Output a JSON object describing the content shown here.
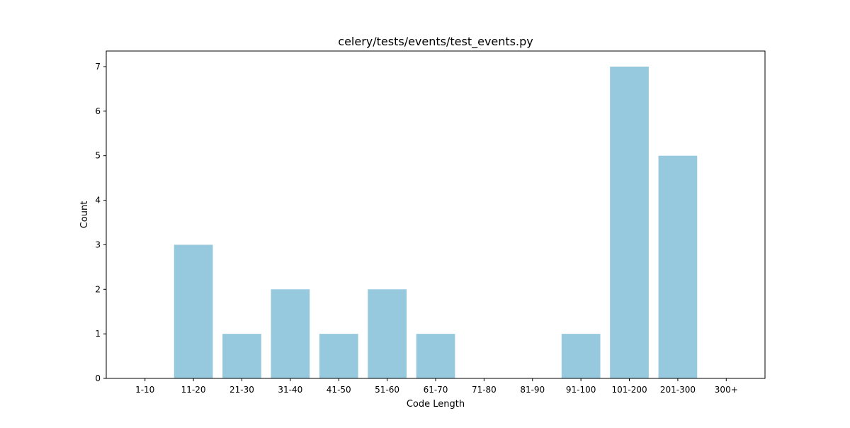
{
  "chart_data": {
    "type": "bar",
    "title": "celery/tests/events/test_events.py",
    "xlabel": "Code Length",
    "ylabel": "Count",
    "categories": [
      "1-10",
      "11-20",
      "21-30",
      "31-40",
      "41-50",
      "51-60",
      "61-70",
      "71-80",
      "81-90",
      "91-100",
      "101-200",
      "201-300",
      "300+"
    ],
    "values": [
      0,
      3,
      1,
      2,
      1,
      2,
      1,
      0,
      0,
      1,
      7,
      5,
      0
    ],
    "ylim": [
      0,
      7.35
    ],
    "yticks": [
      0,
      1,
      2,
      3,
      4,
      5,
      6,
      7
    ],
    "grid": false,
    "bar_color": "#96c9dd"
  }
}
